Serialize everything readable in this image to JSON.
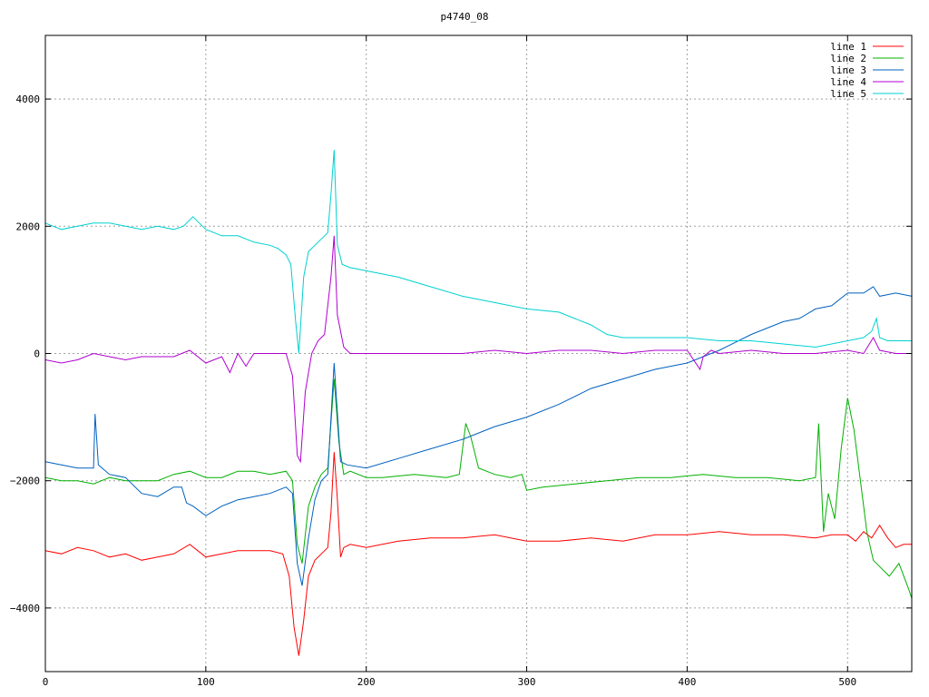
{
  "chart_data": {
    "type": "line",
    "title": "p4740_08",
    "xlim": [
      0,
      540
    ],
    "ylim": [
      -5000,
      5000
    ],
    "xticks": [
      0,
      100,
      200,
      300,
      400,
      500
    ],
    "yticks": [
      -4000,
      -2000,
      0,
      2000,
      4000
    ],
    "grid": true,
    "legend_position": "top-right",
    "series": [
      {
        "name": "line 1",
        "color": "#ff0000",
        "x": [
          0,
          10,
          20,
          30,
          40,
          50,
          60,
          70,
          80,
          90,
          100,
          110,
          120,
          130,
          140,
          148,
          152,
          155,
          158,
          161,
          164,
          168,
          172,
          176,
          178,
          180,
          182,
          184,
          186,
          190,
          200,
          210,
          220,
          240,
          260,
          280,
          300,
          320,
          340,
          360,
          380,
          400,
          420,
          440,
          460,
          480,
          490,
          500,
          505,
          510,
          515,
          520,
          525,
          530,
          535,
          540
        ],
        "y": [
          -3100,
          -3150,
          -3050,
          -3100,
          -3200,
          -3150,
          -3250,
          -3200,
          -3150,
          -3000,
          -3200,
          -3150,
          -3100,
          -3100,
          -3100,
          -3150,
          -3500,
          -4300,
          -4750,
          -4200,
          -3500,
          -3250,
          -3150,
          -3050,
          -2500,
          -1550,
          -2300,
          -3200,
          -3050,
          -3000,
          -3050,
          -3000,
          -2950,
          -2900,
          -2900,
          -2850,
          -2950,
          -2950,
          -2900,
          -2950,
          -2850,
          -2850,
          -2800,
          -2850,
          -2850,
          -2900,
          -2850,
          -2850,
          -2950,
          -2800,
          -2900,
          -2700,
          -2900,
          -3050,
          -3000,
          -3000
        ]
      },
      {
        "name": "line 2",
        "color": "#00b000",
        "x": [
          0,
          10,
          20,
          30,
          40,
          50,
          60,
          70,
          80,
          90,
          100,
          110,
          120,
          130,
          140,
          150,
          154,
          157,
          160,
          164,
          168,
          172,
          176,
          180,
          183,
          186,
          190,
          200,
          210,
          230,
          250,
          258,
          262,
          265,
          270,
          280,
          290,
          297,
          300,
          310,
          330,
          350,
          370,
          390,
          410,
          430,
          450,
          470,
          480,
          482,
          485,
          488,
          492,
          496,
          500,
          504,
          508,
          512,
          516,
          520,
          526,
          532,
          538,
          540
        ],
        "y": [
          -1950,
          -2000,
          -2000,
          -2050,
          -1950,
          -2000,
          -2000,
          -2000,
          -1900,
          -1850,
          -1950,
          -1950,
          -1850,
          -1850,
          -1900,
          -1850,
          -2000,
          -3000,
          -3300,
          -2400,
          -2100,
          -1900,
          -1800,
          -400,
          -1400,
          -1900,
          -1850,
          -1950,
          -1950,
          -1900,
          -1950,
          -1900,
          -1100,
          -1300,
          -1800,
          -1900,
          -1950,
          -1900,
          -2150,
          -2100,
          -2050,
          -2000,
          -1950,
          -1950,
          -1900,
          -1950,
          -1950,
          -2000,
          -1950,
          -1100,
          -2800,
          -2200,
          -2600,
          -1500,
          -700,
          -1200,
          -2000,
          -2800,
          -3250,
          -3350,
          -3500,
          -3300,
          -3700,
          -3850
        ]
      },
      {
        "name": "line 3",
        "color": "#0060c0",
        "x": [
          0,
          10,
          20,
          30,
          31,
          33,
          40,
          50,
          60,
          70,
          80,
          85,
          88,
          92,
          100,
          110,
          120,
          130,
          140,
          150,
          154,
          157,
          160,
          164,
          168,
          172,
          176,
          180,
          184,
          188,
          200,
          220,
          240,
          260,
          280,
          300,
          320,
          340,
          360,
          380,
          400,
          410,
          420,
          440,
          460,
          470,
          480,
          490,
          500,
          510,
          516,
          520,
          530,
          540
        ],
        "y": [
          -1700,
          -1750,
          -1800,
          -1800,
          -950,
          -1750,
          -1900,
          -1950,
          -2200,
          -2250,
          -2100,
          -2100,
          -2350,
          -2400,
          -2550,
          -2400,
          -2300,
          -2250,
          -2200,
          -2100,
          -2200,
          -3300,
          -3650,
          -2900,
          -2300,
          -2000,
          -1900,
          -150,
          -1700,
          -1750,
          -1800,
          -1650,
          -1500,
          -1350,
          -1150,
          -1000,
          -800,
          -550,
          -400,
          -250,
          -150,
          -50,
          50,
          300,
          500,
          550,
          700,
          750,
          950,
          950,
          1050,
          900,
          950,
          900
        ]
      },
      {
        "name": "line 4",
        "color": "#b000d0",
        "x": [
          0,
          10,
          20,
          30,
          40,
          50,
          60,
          70,
          80,
          90,
          100,
          110,
          115,
          120,
          125,
          130,
          140,
          150,
          154,
          157,
          159,
          162,
          166,
          170,
          174,
          178,
          180,
          182,
          186,
          190,
          200,
          220,
          240,
          260,
          280,
          300,
          320,
          340,
          360,
          380,
          400,
          408,
          410,
          415,
          420,
          440,
          460,
          480,
          500,
          510,
          516,
          520,
          530,
          540
        ],
        "y": [
          -100,
          -150,
          -100,
          0,
          -50,
          -100,
          -50,
          -50,
          -50,
          50,
          -150,
          -50,
          -300,
          0,
          -200,
          0,
          0,
          0,
          -350,
          -1600,
          -1700,
          -600,
          0,
          200,
          300,
          1200,
          1850,
          600,
          100,
          0,
          0,
          0,
          0,
          0,
          50,
          0,
          50,
          50,
          0,
          50,
          50,
          -250,
          -50,
          50,
          0,
          50,
          0,
          0,
          50,
          0,
          250,
          50,
          0,
          0
        ]
      },
      {
        "name": "line 5",
        "color": "#00d0d0",
        "x": [
          0,
          10,
          20,
          30,
          40,
          50,
          60,
          70,
          80,
          86,
          90,
          92,
          96,
          100,
          110,
          120,
          130,
          140,
          145,
          150,
          153,
          156,
          158,
          161,
          164,
          168,
          172,
          176,
          178,
          180,
          182,
          185,
          190,
          200,
          220,
          240,
          260,
          280,
          300,
          320,
          340,
          350,
          360,
          380,
          400,
          420,
          440,
          460,
          480,
          500,
          510,
          515,
          518,
          520,
          525,
          530,
          540
        ],
        "y": [
          2050,
          1950,
          2000,
          2050,
          2050,
          2000,
          1950,
          2000,
          1950,
          2000,
          2100,
          2150,
          2050,
          1950,
          1850,
          1850,
          1750,
          1700,
          1650,
          1550,
          1400,
          500,
          0,
          1200,
          1600,
          1700,
          1800,
          1900,
          2500,
          3200,
          1700,
          1400,
          1350,
          1300,
          1200,
          1050,
          900,
          800,
          700,
          650,
          450,
          300,
          250,
          250,
          250,
          200,
          200,
          150,
          100,
          200,
          250,
          350,
          550,
          250,
          200,
          200,
          200
        ]
      }
    ]
  }
}
